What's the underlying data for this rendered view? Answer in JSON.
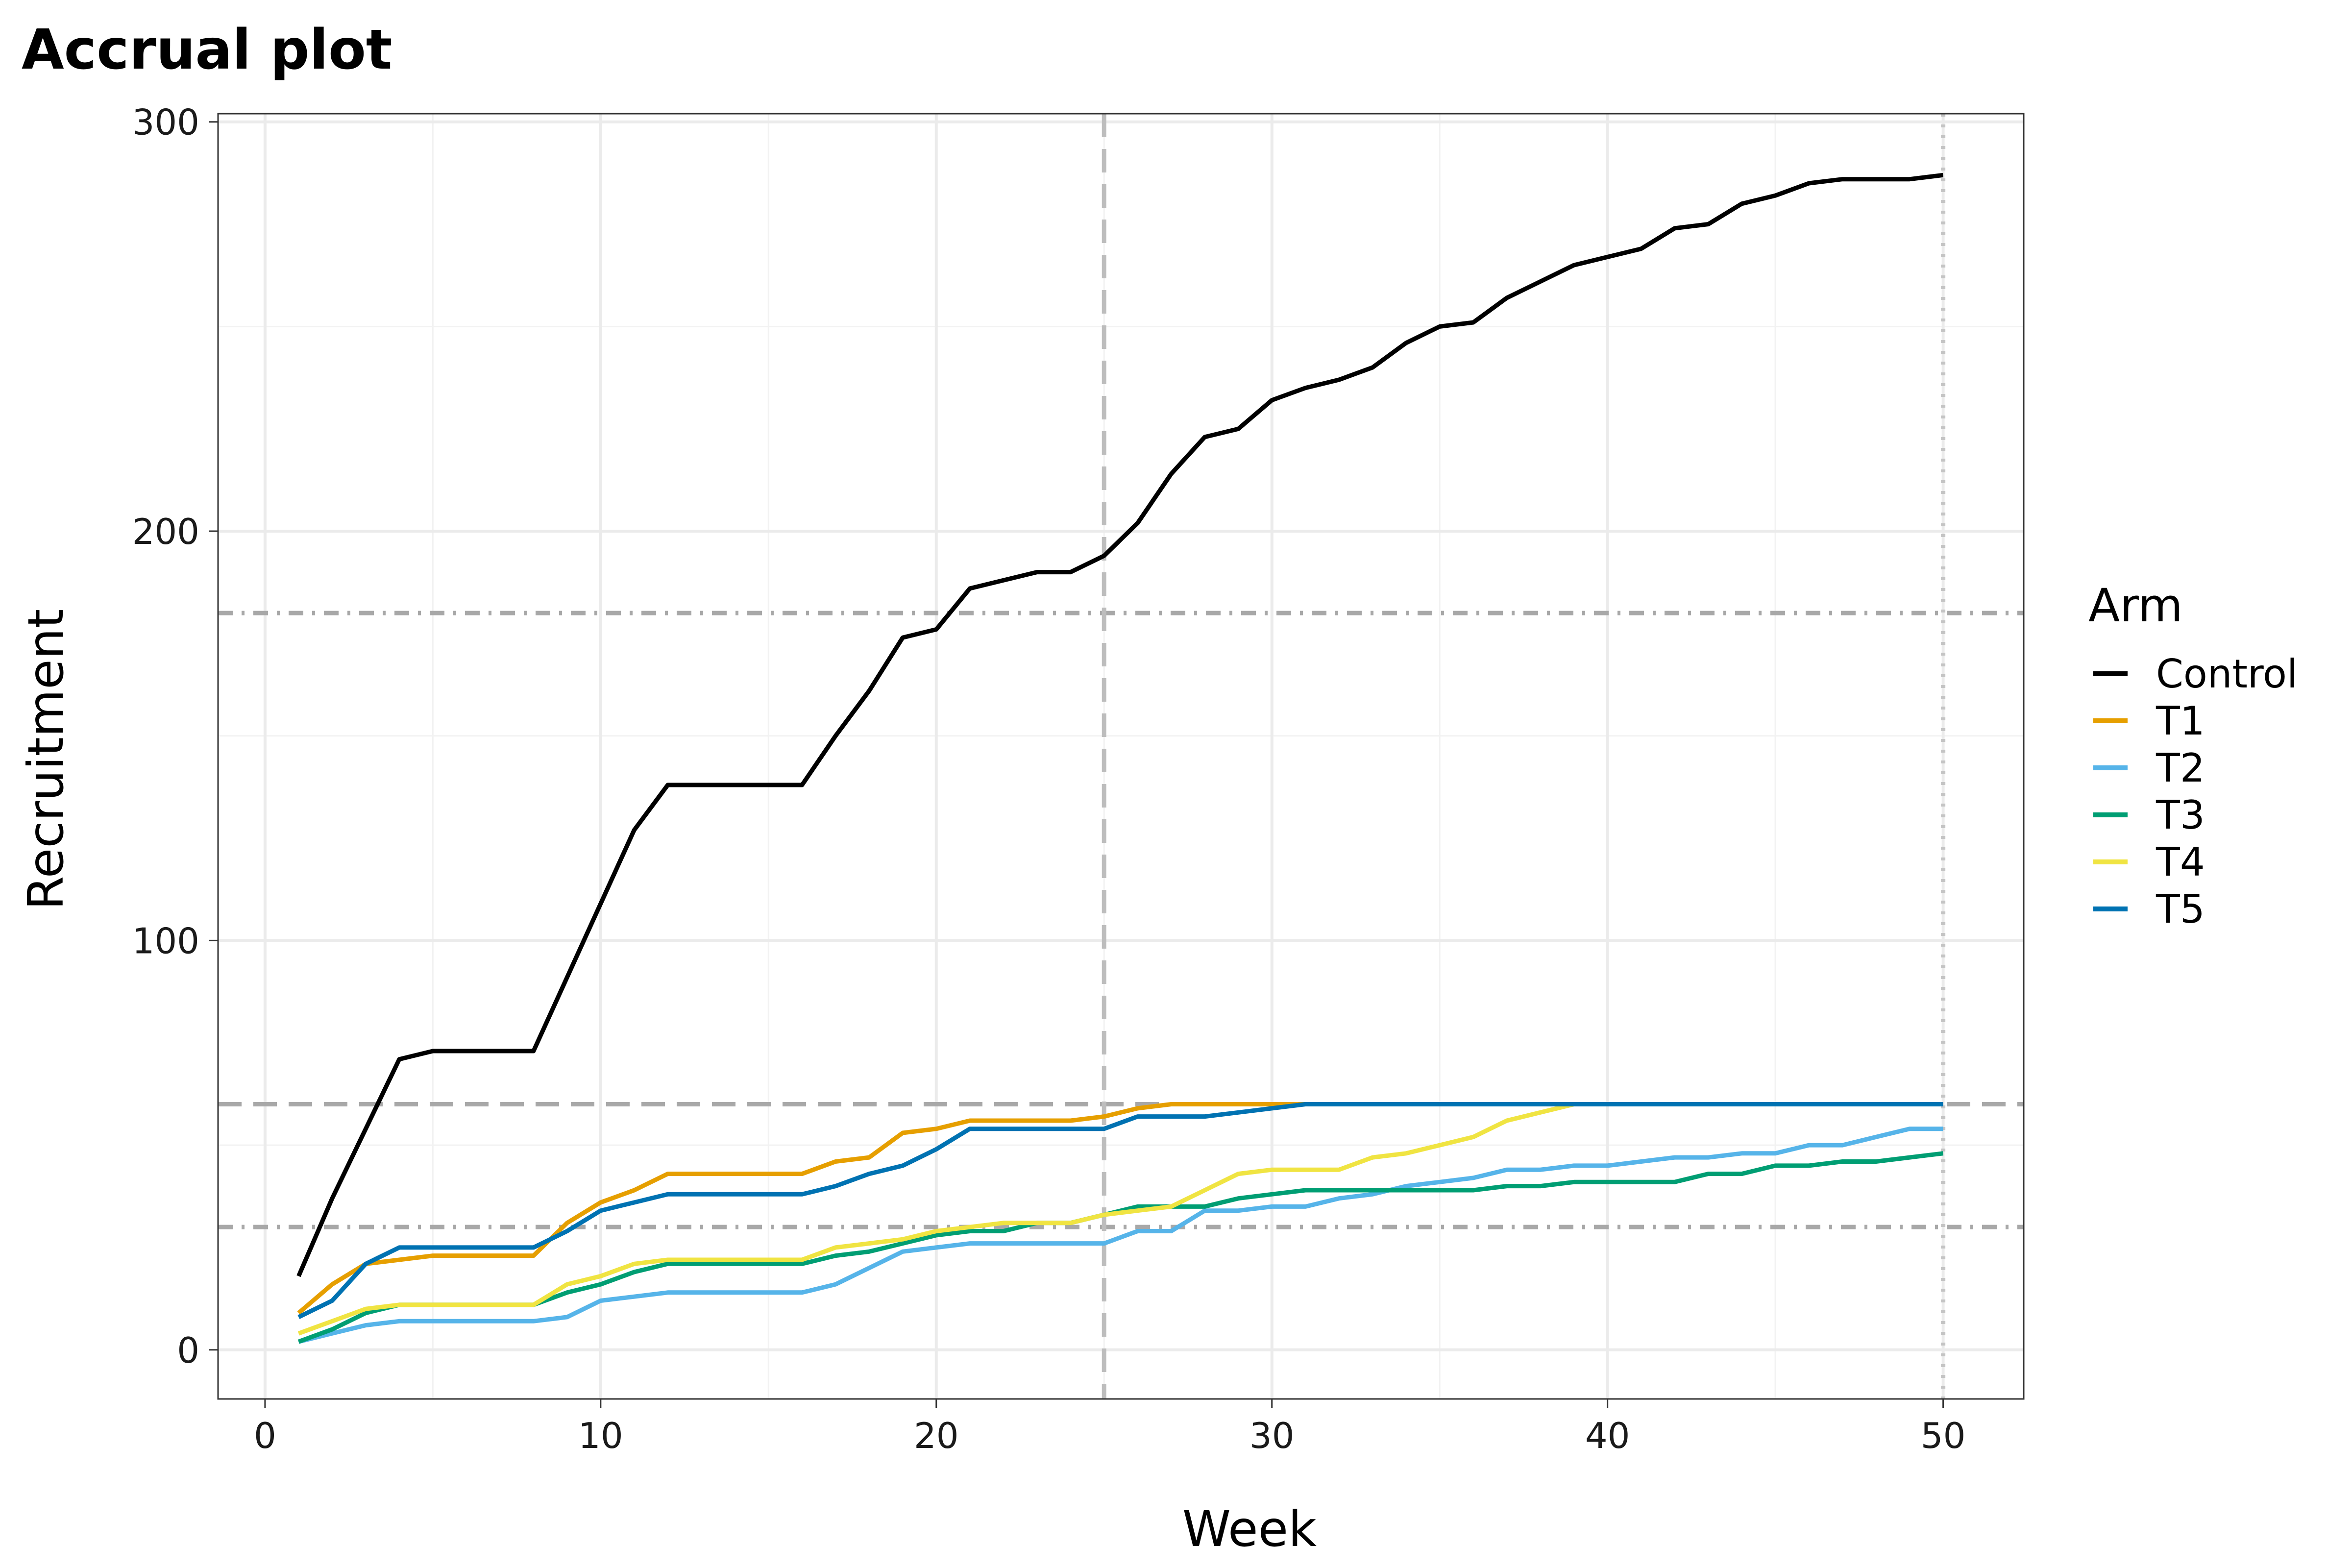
{
  "chart_data": {
    "type": "line",
    "title": "Accrual plot",
    "xlabel": "Week",
    "ylabel": "Recruitment",
    "xlim": [
      -1.4,
      52.4
    ],
    "ylim": [
      -12,
      302
    ],
    "xticks": [
      0,
      10,
      20,
      30,
      40,
      50
    ],
    "yticks": [
      0,
      100,
      200,
      300
    ],
    "grid": true,
    "legend": {
      "title": "Arm",
      "position": "right"
    },
    "reference_lines": [
      {
        "orientation": "horizontal",
        "value": 180,
        "style": "dotdash"
      },
      {
        "orientation": "horizontal",
        "value": 60,
        "style": "dashed"
      },
      {
        "orientation": "horizontal",
        "value": 30,
        "style": "dotdash"
      },
      {
        "orientation": "vertical",
        "value": 25,
        "style": "dashed"
      },
      {
        "orientation": "vertical",
        "value": 50,
        "style": "dotted"
      }
    ],
    "series": [
      {
        "name": "Control",
        "color": "#000000",
        "x": [
          1,
          2,
          3,
          4,
          5,
          6,
          7,
          8,
          9,
          10,
          11,
          12,
          13,
          14,
          15,
          16,
          17,
          18,
          19,
          20,
          21,
          22,
          23,
          24,
          25,
          26,
          27,
          28,
          29,
          30,
          31,
          32,
          33,
          34,
          35,
          36,
          37,
          38,
          39,
          40,
          41,
          42,
          43,
          44,
          45,
          46,
          47,
          48,
          49,
          50
        ],
        "values": [
          18,
          37,
          54,
          71,
          73,
          73,
          73,
          73,
          91,
          109,
          127,
          138,
          138,
          138,
          138,
          138,
          150,
          161,
          174,
          176,
          186,
          188,
          190,
          190,
          194,
          202,
          214,
          223,
          225,
          232,
          235,
          237,
          240,
          246,
          250,
          251,
          257,
          261,
          265,
          267,
          269,
          274,
          275,
          280,
          282,
          285,
          286,
          286,
          286,
          287
        ]
      },
      {
        "name": "T1",
        "color": "#E69F00",
        "x": [
          1,
          2,
          3,
          4,
          5,
          6,
          7,
          8,
          9,
          10,
          11,
          12,
          13,
          14,
          15,
          16,
          17,
          18,
          19,
          20,
          21,
          22,
          23,
          24,
          25,
          26,
          27,
          28,
          29,
          30,
          31,
          32,
          33,
          34,
          35,
          36,
          37,
          38,
          39,
          40,
          41,
          42,
          43,
          44,
          45,
          46,
          47,
          48,
          49,
          50
        ],
        "values": [
          9,
          16,
          21,
          22,
          23,
          23,
          23,
          23,
          31,
          36,
          39,
          43,
          43,
          43,
          43,
          43,
          46,
          47,
          53,
          54,
          56,
          56,
          56,
          56,
          57,
          59,
          60,
          60,
          60,
          60,
          60,
          60,
          60,
          60,
          60,
          60,
          60,
          60,
          60,
          60,
          60,
          60,
          60,
          60,
          60,
          60,
          60,
          60,
          60,
          60
        ]
      },
      {
        "name": "T2",
        "color": "#56B4E9",
        "x": [
          1,
          2,
          3,
          4,
          5,
          6,
          7,
          8,
          9,
          10,
          11,
          12,
          13,
          14,
          15,
          16,
          17,
          18,
          19,
          20,
          21,
          22,
          23,
          24,
          25,
          26,
          27,
          28,
          29,
          30,
          31,
          32,
          33,
          34,
          35,
          36,
          37,
          38,
          39,
          40,
          41,
          42,
          43,
          44,
          45,
          46,
          47,
          48,
          49,
          50
        ],
        "values": [
          2,
          4,
          6,
          7,
          7,
          7,
          7,
          7,
          8,
          12,
          13,
          14,
          14,
          14,
          14,
          14,
          16,
          20,
          24,
          25,
          26,
          26,
          26,
          26,
          26,
          29,
          29,
          34,
          34,
          35,
          35,
          37,
          38,
          40,
          41,
          42,
          44,
          44,
          45,
          45,
          46,
          47,
          47,
          48,
          48,
          50,
          50,
          52,
          54,
          54
        ]
      },
      {
        "name": "T3",
        "color": "#009E73",
        "x": [
          1,
          2,
          3,
          4,
          5,
          6,
          7,
          8,
          9,
          10,
          11,
          12,
          13,
          14,
          15,
          16,
          17,
          18,
          19,
          20,
          21,
          22,
          23,
          24,
          25,
          26,
          27,
          28,
          29,
          30,
          31,
          32,
          33,
          34,
          35,
          36,
          37,
          38,
          39,
          40,
          41,
          42,
          43,
          44,
          45,
          46,
          47,
          48,
          49,
          50
        ],
        "values": [
          2,
          5,
          9,
          11,
          11,
          11,
          11,
          11,
          14,
          16,
          19,
          21,
          21,
          21,
          21,
          21,
          23,
          24,
          26,
          28,
          29,
          29,
          31,
          31,
          33,
          35,
          35,
          35,
          37,
          38,
          39,
          39,
          39,
          39,
          39,
          39,
          40,
          40,
          41,
          41,
          41,
          41,
          43,
          43,
          45,
          45,
          46,
          46,
          47,
          48
        ]
      },
      {
        "name": "T4",
        "color": "#F0E442",
        "x": [
          1,
          2,
          3,
          4,
          5,
          6,
          7,
          8,
          9,
          10,
          11,
          12,
          13,
          14,
          15,
          16,
          17,
          18,
          19,
          20,
          21,
          22,
          23,
          24,
          25,
          26,
          27,
          28,
          29,
          30,
          31,
          32,
          33,
          34,
          35,
          36,
          37,
          38,
          39,
          40,
          41,
          42,
          43,
          44,
          45,
          46,
          47,
          48,
          49,
          50
        ],
        "values": [
          4,
          7,
          10,
          11,
          11,
          11,
          11,
          11,
          16,
          18,
          21,
          22,
          22,
          22,
          22,
          22,
          25,
          26,
          27,
          29,
          30,
          31,
          31,
          31,
          33,
          34,
          35,
          39,
          43,
          44,
          44,
          44,
          47,
          48,
          50,
          52,
          56,
          58,
          60,
          60,
          60,
          60,
          60,
          60,
          60,
          60,
          60,
          60,
          60,
          60
        ]
      },
      {
        "name": "T5",
        "color": "#0072B2",
        "x": [
          1,
          2,
          3,
          4,
          5,
          6,
          7,
          8,
          9,
          10,
          11,
          12,
          13,
          14,
          15,
          16,
          17,
          18,
          19,
          20,
          21,
          22,
          23,
          24,
          25,
          26,
          27,
          28,
          29,
          30,
          31,
          32,
          33,
          34,
          35,
          36,
          37,
          38,
          39,
          40,
          41,
          42,
          43,
          44,
          45,
          46,
          47,
          48,
          49,
          50
        ],
        "values": [
          8,
          12,
          21,
          25,
          25,
          25,
          25,
          25,
          29,
          34,
          36,
          38,
          38,
          38,
          38,
          38,
          40,
          43,
          45,
          49,
          54,
          54,
          54,
          54,
          54,
          57,
          57,
          57,
          58,
          59,
          60,
          60,
          60,
          60,
          60,
          60,
          60,
          60,
          60,
          60,
          60,
          60,
          60,
          60,
          60,
          60,
          60,
          60,
          60,
          60
        ]
      }
    ]
  }
}
